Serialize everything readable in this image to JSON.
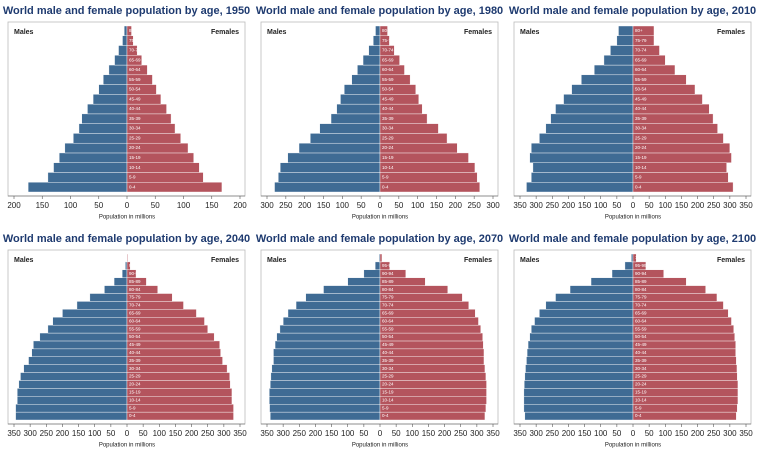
{
  "chart_data": [
    {
      "type": "bar",
      "title": "World male and female population by age, 1950",
      "xlabel": "Population in millions",
      "categories": [
        "0-4",
        "5-9",
        "10-14",
        "15-19",
        "20-24",
        "25-29",
        "30-34",
        "35-39",
        "40-44",
        "45-49",
        "50-54",
        "55-59",
        "60-64",
        "65-69",
        "70-74",
        "75-79",
        "80+"
      ],
      "series": [
        {
          "name": "Males",
          "color": "#3f6b94",
          "values": [
            175,
            140,
            130,
            120,
            110,
            95,
            85,
            80,
            70,
            60,
            50,
            42,
            32,
            22,
            15,
            8,
            5
          ]
        },
        {
          "name": "Females",
          "color": "#b4545d",
          "values": [
            168,
            135,
            128,
            118,
            108,
            95,
            85,
            78,
            70,
            60,
            52,
            45,
            36,
            26,
            18,
            11,
            8
          ]
        }
      ],
      "xlim": [
        -200,
        200
      ],
      "xticks": [
        {
          "value": -200,
          "label": "200"
        },
        {
          "value": -150,
          "label": "150"
        },
        {
          "value": -100,
          "label": "100"
        },
        {
          "value": -50,
          "label": "50"
        },
        0,
        50,
        100,
        150,
        200
      ]
    },
    {
      "type": "bar",
      "title": "World male and female population by age, 1980",
      "xlabel": "Population in millions",
      "categories": [
        "0-4",
        "5-9",
        "10-14",
        "15-19",
        "20-24",
        "25-29",
        "30-34",
        "35-39",
        "40-44",
        "45-49",
        "50-54",
        "55-59",
        "60-64",
        "65-69",
        "70-74",
        "75-79",
        "80+"
      ],
      "series": [
        {
          "name": "Males",
          "color": "#3f6b94",
          "values": [
            280,
            270,
            265,
            245,
            215,
            185,
            160,
            130,
            115,
            105,
            95,
            75,
            60,
            45,
            30,
            18,
            12
          ]
        },
        {
          "name": "Females",
          "color": "#b4545d",
          "values": [
            265,
            258,
            252,
            235,
            205,
            178,
            155,
            125,
            112,
            103,
            95,
            80,
            65,
            52,
            38,
            25,
            20
          ]
        }
      ],
      "xlim": [
        -300,
        300
      ],
      "xticks": [
        {
          "value": -300,
          "label": "300"
        },
        {
          "value": -250,
          "label": "250"
        },
        {
          "value": -200,
          "label": "200"
        },
        {
          "value": -150,
          "label": "150"
        },
        {
          "value": -100,
          "label": "100"
        },
        {
          "value": -50,
          "label": "50"
        },
        0,
        50,
        100,
        150,
        200,
        250,
        300
      ]
    },
    {
      "type": "bar",
      "title": "World male and female population by age, 2010",
      "xlabel": "Population in millions",
      "categories": [
        "0-4",
        "5-9",
        "10-14",
        "15-19",
        "20-24",
        "25-29",
        "30-34",
        "35-39",
        "40-44",
        "45-49",
        "50-54",
        "55-59",
        "60-64",
        "65-69",
        "70-74",
        "75-79",
        "80+"
      ],
      "series": [
        {
          "name": "Males",
          "color": "#3f6b94",
          "values": [
            330,
            315,
            310,
            320,
            315,
            290,
            270,
            255,
            240,
            215,
            190,
            160,
            120,
            90,
            70,
            50,
            45
          ]
        },
        {
          "name": "Females",
          "color": "#b4545d",
          "values": [
            310,
            295,
            290,
            305,
            300,
            280,
            262,
            248,
            236,
            215,
            192,
            165,
            130,
            100,
            82,
            65,
            65
          ]
        }
      ],
      "xlim": [
        -350,
        350
      ],
      "xticks": [
        {
          "value": -350,
          "label": "350"
        },
        {
          "value": -300,
          "label": "300"
        },
        {
          "value": -250,
          "label": "250"
        },
        {
          "value": -200,
          "label": "200"
        },
        {
          "value": -150,
          "label": "150"
        },
        {
          "value": -100,
          "label": "100"
        },
        {
          "value": -50,
          "label": "50"
        },
        0,
        50,
        100,
        150,
        200,
        250,
        300,
        350
      ]
    },
    {
      "type": "bar",
      "title": "World male and female population by age, 2040",
      "xlabel": "Population in millions",
      "categories": [
        "0-4",
        "5-9",
        "10-14",
        "15-19",
        "20-24",
        "25-29",
        "30-34",
        "35-39",
        "40-44",
        "45-49",
        "50-54",
        "55-59",
        "60-64",
        "65-69",
        "70-74",
        "75-79",
        "80-84",
        "85-89",
        "90-94",
        "95-99",
        "100+"
      ],
      "series": [
        {
          "name": "Males",
          "color": "#3f6b94",
          "values": [
            345,
            345,
            340,
            340,
            335,
            330,
            320,
            305,
            295,
            290,
            270,
            245,
            230,
            200,
            155,
            115,
            70,
            40,
            15,
            5,
            1
          ]
        },
        {
          "name": "Females",
          "color": "#b4545d",
          "values": [
            330,
            330,
            325,
            325,
            320,
            318,
            310,
            296,
            290,
            287,
            270,
            250,
            240,
            215,
            175,
            140,
            95,
            60,
            28,
            10,
            2
          ]
        }
      ],
      "xlim": [
        -350,
        350
      ],
      "xticks": [
        {
          "value": -350,
          "label": "350"
        },
        {
          "value": -300,
          "label": "300"
        },
        {
          "value": -250,
          "label": "250"
        },
        {
          "value": -200,
          "label": "200"
        },
        {
          "value": -150,
          "label": "150"
        },
        {
          "value": -100,
          "label": "100"
        },
        {
          "value": -50,
          "label": "50"
        },
        0,
        50,
        100,
        150,
        200,
        250,
        300,
        350
      ]
    },
    {
      "type": "bar",
      "title": "World male and female population by age, 2070",
      "xlabel": "Population in millions",
      "categories": [
        "0-4",
        "5-9",
        "10-14",
        "15-19",
        "20-24",
        "25-29",
        "30-34",
        "35-39",
        "40-44",
        "45-49",
        "50-54",
        "55-59",
        "60-64",
        "65-69",
        "70-74",
        "75-79",
        "80-84",
        "85-89",
        "90-94",
        "95-99",
        "100+"
      ],
      "series": [
        {
          "name": "Males",
          "color": "#3f6b94",
          "values": [
            340,
            342,
            343,
            343,
            340,
            338,
            335,
            330,
            330,
            325,
            320,
            310,
            300,
            285,
            260,
            230,
            175,
            100,
            50,
            15,
            3
          ]
        },
        {
          "name": "Females",
          "color": "#b4545d",
          "values": [
            325,
            328,
            330,
            330,
            330,
            328,
            325,
            322,
            322,
            320,
            318,
            312,
            305,
            295,
            275,
            255,
            210,
            140,
            80,
            30,
            6
          ]
        }
      ],
      "xlim": [
        -350,
        350
      ],
      "xticks": [
        {
          "value": -350,
          "label": "350"
        },
        {
          "value": -300,
          "label": "300"
        },
        {
          "value": -250,
          "label": "250"
        },
        {
          "value": -200,
          "label": "200"
        },
        {
          "value": -150,
          "label": "150"
        },
        {
          "value": -100,
          "label": "100"
        },
        {
          "value": -50,
          "label": "50"
        },
        0,
        50,
        100,
        150,
        200,
        250,
        300,
        350
      ]
    },
    {
      "type": "bar",
      "title": "World male and female population by age, 2100",
      "xlabel": "Population in millions",
      "categories": [
        "0-4",
        "5-9",
        "10-14",
        "15-19",
        "20-24",
        "25-29",
        "30-34",
        "35-39",
        "40-44",
        "45-49",
        "50-54",
        "55-59",
        "60-64",
        "65-69",
        "70-74",
        "75-79",
        "80-84",
        "85-89",
        "90-94",
        "95-99",
        "100+"
      ],
      "series": [
        {
          "name": "Males",
          "color": "#3f6b94",
          "values": [
            335,
            338,
            338,
            338,
            337,
            335,
            333,
            330,
            328,
            325,
            320,
            315,
            305,
            290,
            270,
            240,
            195,
            130,
            65,
            25,
            5
          ]
        },
        {
          "name": "Females",
          "color": "#b4545d",
          "values": [
            320,
            323,
            325,
            325,
            325,
            323,
            322,
            320,
            318,
            318,
            315,
            312,
            305,
            295,
            280,
            260,
            225,
            165,
            95,
            40,
            10
          ]
        }
      ],
      "xlim": [
        -350,
        350
      ],
      "xticks": [
        {
          "value": -350,
          "label": "350"
        },
        {
          "value": -300,
          "label": "300"
        },
        {
          "value": -250,
          "label": "250"
        },
        {
          "value": -200,
          "label": "200"
        },
        {
          "value": -150,
          "label": "150"
        },
        {
          "value": -100,
          "label": "100"
        },
        {
          "value": -50,
          "label": "50"
        },
        0,
        50,
        100,
        150,
        200,
        250,
        300,
        350
      ]
    }
  ]
}
